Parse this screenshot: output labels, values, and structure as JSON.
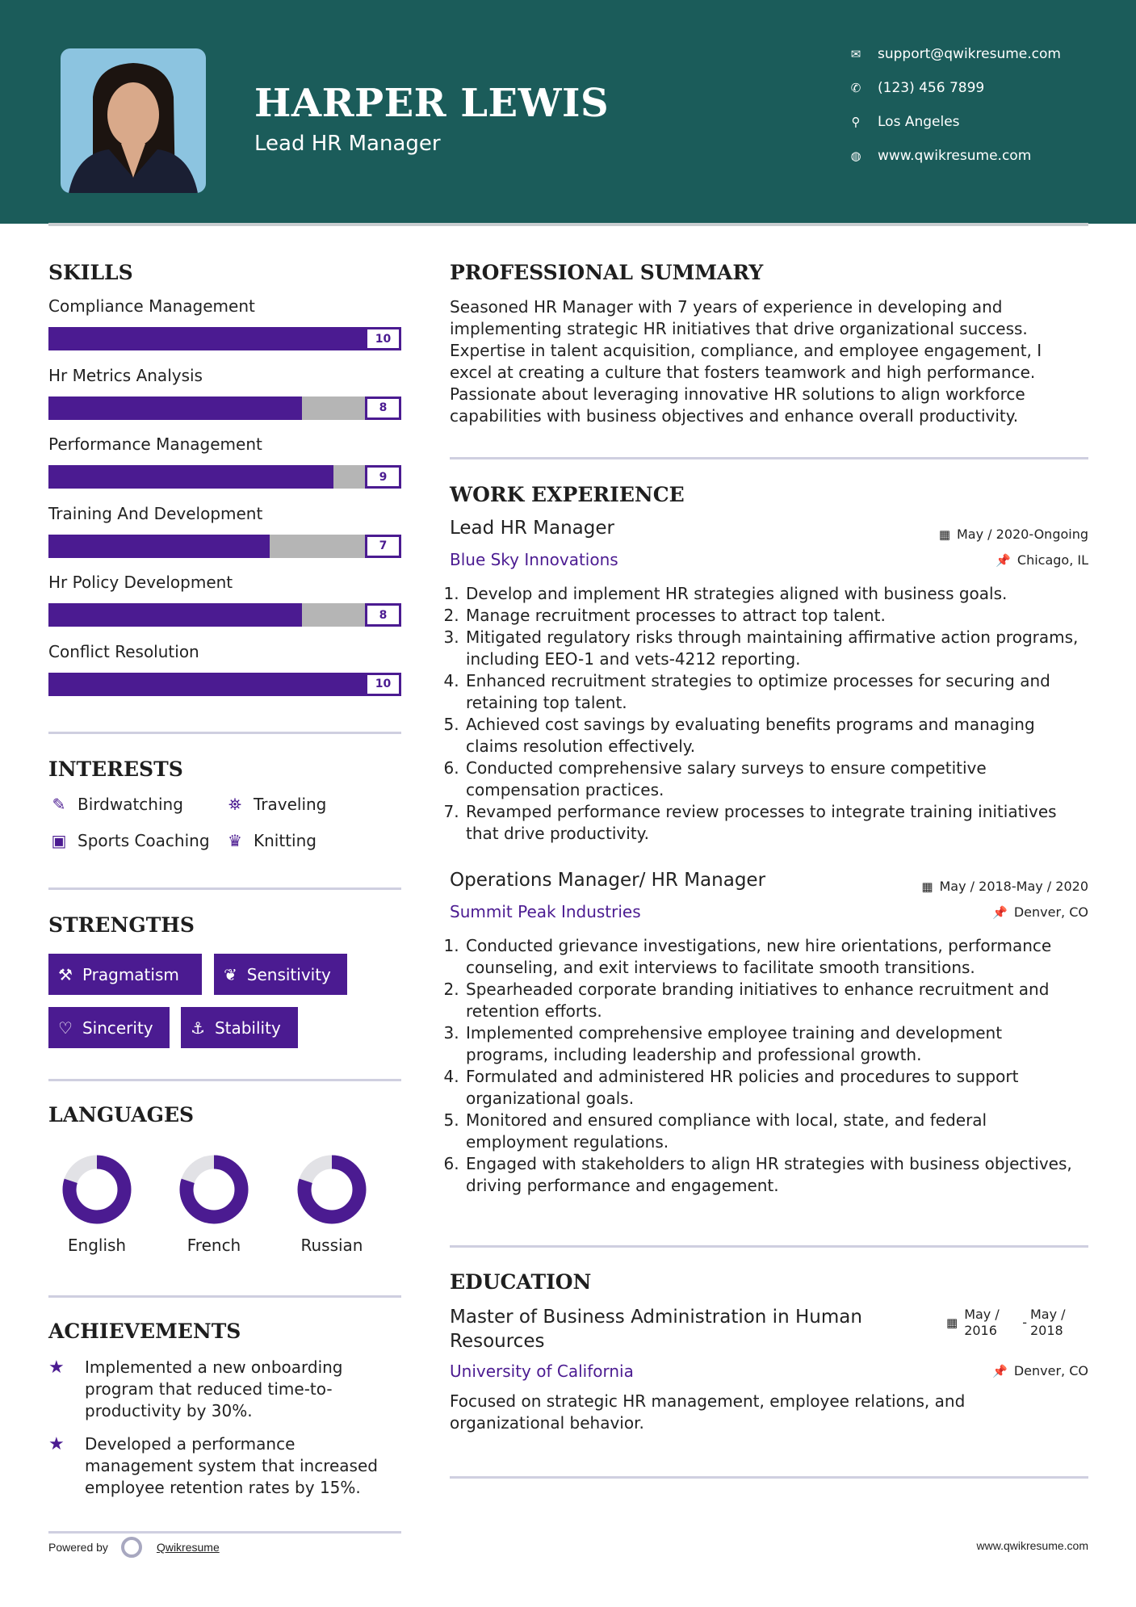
{
  "header": {
    "name": "HARPER LEWIS",
    "title": "Lead HR Manager",
    "contacts": [
      {
        "icon": "envelope-icon",
        "text": "support@qwikresume.com"
      },
      {
        "icon": "phone-icon",
        "text": "(123) 456 7899"
      },
      {
        "icon": "map-marker-icon",
        "text": "Los Angeles"
      },
      {
        "icon": "globe-icon",
        "text": "www.qwikresume.com"
      }
    ]
  },
  "colors": {
    "header_bg": "#1b5c5a",
    "accent": "#4b1b91"
  },
  "skills": {
    "heading": "SKILLS",
    "items": [
      {
        "label": "Compliance Management",
        "value": 10,
        "value_text": "10"
      },
      {
        "label": "Hr Metrics Analysis",
        "value": 8,
        "value_text": "8"
      },
      {
        "label": "Performance Management",
        "value": 9,
        "value_text": "9"
      },
      {
        "label": "Training And Development",
        "value": 7,
        "value_text": "7"
      },
      {
        "label": "Hr Policy Development",
        "value": 8,
        "value_text": "8"
      },
      {
        "label": "Conflict Resolution",
        "value": 10,
        "value_text": "10"
      }
    ],
    "max": 10
  },
  "interests": {
    "heading": "INTERESTS",
    "items": [
      {
        "label": "Birdwatching",
        "icon": "edit-icon"
      },
      {
        "label": "Traveling",
        "icon": "binoculars-icon"
      },
      {
        "label": "Sports Coaching",
        "icon": "briefcase-icon"
      },
      {
        "label": "Knitting",
        "icon": "trophy-icon"
      }
    ]
  },
  "strengths": {
    "heading": "STRENGTHS",
    "items": [
      {
        "label": "Pragmatism",
        "icon": "gavel-icon"
      },
      {
        "label": "Sensitivity",
        "icon": "leaf-icon"
      },
      {
        "label": "Sincerity",
        "icon": "heart-icon"
      },
      {
        "label": "Stability",
        "icon": "anchor-icon"
      }
    ]
  },
  "languages": {
    "heading": "LANGUAGES",
    "items": [
      {
        "label": "English",
        "level": 0.8
      },
      {
        "label": "French",
        "level": 0.8
      },
      {
        "label": "Russian",
        "level": 0.8
      }
    ]
  },
  "achievements": {
    "heading": "ACHIEVEMENTS",
    "items": [
      "Implemented a new onboarding program that reduced time-to-productivity by 30%.",
      "Developed a performance management system that increased employee retention rates by 15%."
    ]
  },
  "summary": {
    "heading": "PROFESSIONAL SUMMARY",
    "text": "Seasoned HR Manager with 7 years of experience in developing and implementing strategic HR initiatives that drive organizational success. Expertise in talent acquisition, compliance, and employee engagement, I excel at creating a culture that fosters teamwork and high performance. Passionate about leveraging innovative HR solutions to align workforce capabilities with business objectives and enhance overall productivity."
  },
  "experience": {
    "heading": "WORK EXPERIENCE",
    "jobs": [
      {
        "title": "Lead HR Manager",
        "company": "Blue Sky Innovations",
        "dates": "May / 2020-Ongoing",
        "location": "Chicago, IL",
        "bullets": [
          "Develop and implement HR strategies aligned with business goals.",
          "Manage recruitment processes to attract top talent.",
          "Mitigated regulatory risks through maintaining affirmative action programs, including EEO-1 and vets-4212 reporting.",
          "Enhanced recruitment strategies to optimize processes for securing and retaining top talent.",
          "Achieved cost savings by evaluating benefits programs and managing claims resolution effectively.",
          "Conducted comprehensive salary surveys to ensure competitive compensation practices.",
          "Revamped performance review processes to integrate training initiatives that drive productivity."
        ]
      },
      {
        "title": "Operations Manager/ HR Manager",
        "company": "Summit Peak Industries",
        "dates": "May / 2018-May / 2020",
        "location": "Denver, CO",
        "bullets": [
          "Conducted grievance investigations, new hire orientations, performance counseling, and exit interviews to facilitate smooth transitions.",
          "Spearheaded corporate branding initiatives to enhance recruitment and retention efforts.",
          "Implemented comprehensive employee training and development programs, including leadership and professional growth.",
          "Formulated and administered HR policies and procedures to support organizational goals.",
          "Monitored and ensured compliance with local, state, and federal employment regulations.",
          "Engaged with stakeholders to align HR strategies with business objectives, driving performance and engagement."
        ]
      }
    ]
  },
  "education": {
    "heading": "EDUCATION",
    "degree": "Master of Business Administration in Human Resources",
    "school": "University of California",
    "start": "May / 2016",
    "end": "May / 2018",
    "location": "Denver, CO",
    "description": "Focused on strategic HR management, employee relations, and organizational behavior."
  },
  "footer": {
    "powered_by": "Powered by",
    "brand": "Qwikresume",
    "website": "www.qwikresume.com"
  }
}
